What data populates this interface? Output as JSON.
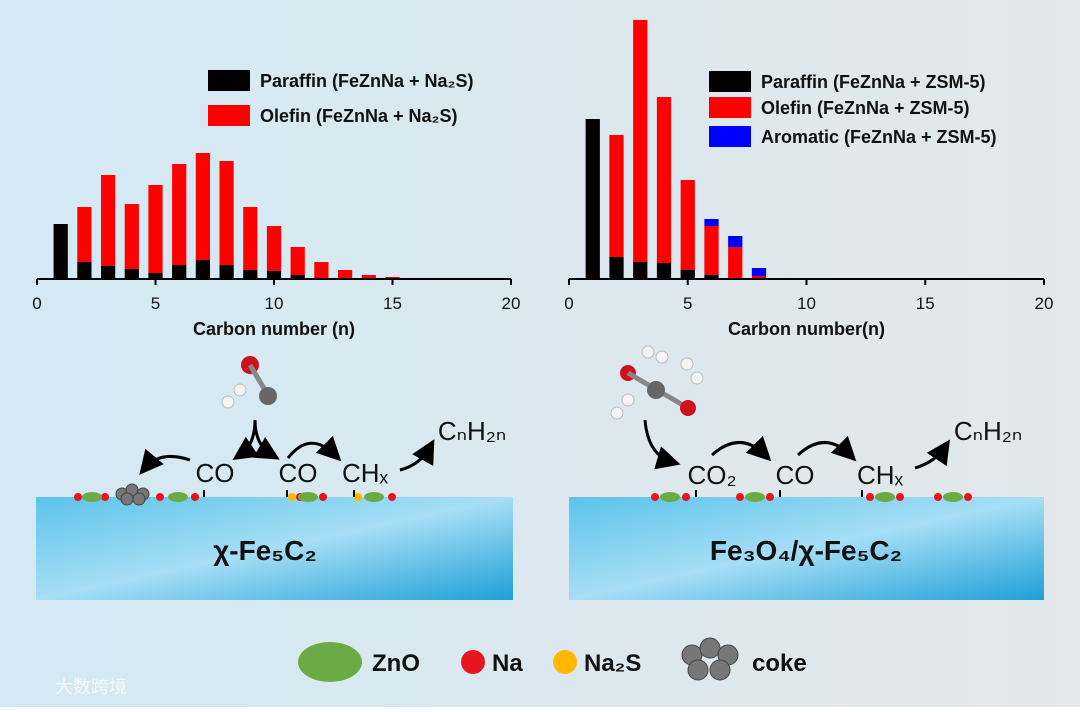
{
  "chart_data": [
    {
      "type": "stacked-bar",
      "xlabel": "Carbon number (n)",
      "x": [
        1,
        2,
        3,
        4,
        5,
        6,
        7,
        8,
        9,
        10,
        11,
        12,
        13,
        14,
        15
      ],
      "series": [
        {
          "name": "Paraffin (FeZnNa + Na₂S)",
          "color": "#000000",
          "values": [
            5.5,
            1.7,
            1.3,
            1.0,
            0.6,
            1.4,
            1.9,
            1.4,
            0.9,
            0.8,
            0.4,
            0,
            0,
            0,
            0
          ]
        },
        {
          "name": "Olefin (FeZnNa + Na₂S)",
          "color": "#ff0000",
          "values": [
            0,
            5.5,
            9.1,
            6.5,
            8.8,
            10.1,
            10.7,
            10.4,
            6.3,
            4.5,
            2.8,
            1.7,
            0.9,
            0.4,
            0.2
          ]
        }
      ],
      "xlim": [
        0,
        20
      ],
      "xticks": [
        0,
        5,
        10,
        15,
        20
      ],
      "ylim": [
        0,
        26
      ]
    },
    {
      "type": "stacked-bar",
      "xlabel": "Carbon number(n)",
      "x": [
        1,
        2,
        3,
        4,
        5,
        6,
        7,
        8,
        9
      ],
      "series": [
        {
          "name": "Paraffin (FeZnNa + ZSM-5)",
          "color": "#000000",
          "values": [
            16.0,
            2.2,
            1.7,
            1.6,
            0.9,
            0.4,
            0,
            0,
            0
          ]
        },
        {
          "name": "Olefin (FeZnNa + ZSM-5)",
          "color": "#ff0000",
          "values": [
            0,
            12.2,
            24.2,
            16.6,
            9.0,
            4.9,
            3.2,
            0.3,
            0.1
          ]
        },
        {
          "name": "Aromatic (FeZnNa + ZSM-5)",
          "color": "#0000ff",
          "values": [
            0,
            0,
            0,
            0,
            0,
            0.7,
            1.1,
            0.8,
            0
          ]
        }
      ],
      "xlim": [
        0,
        20
      ],
      "xticks": [
        0,
        5,
        10,
        15,
        20
      ],
      "ylim": [
        0,
        26
      ]
    }
  ],
  "diagram": {
    "left": {
      "co_a": "CO",
      "co_b": "CO",
      "chx": "CHₓ",
      "product": "CₙH₂ₙ",
      "catalyst": "χ-Fe₅C₂"
    },
    "right": {
      "co2": "CO₂",
      "co": "CO",
      "chx": "CHₓ",
      "product": "CₙH₂ₙ",
      "catalyst": "Fe₃O₄/χ-Fe₅C₂"
    },
    "legend": [
      "ZnO",
      "Na",
      "Na₂S",
      "coke"
    ],
    "watermark": "大数跨境"
  }
}
